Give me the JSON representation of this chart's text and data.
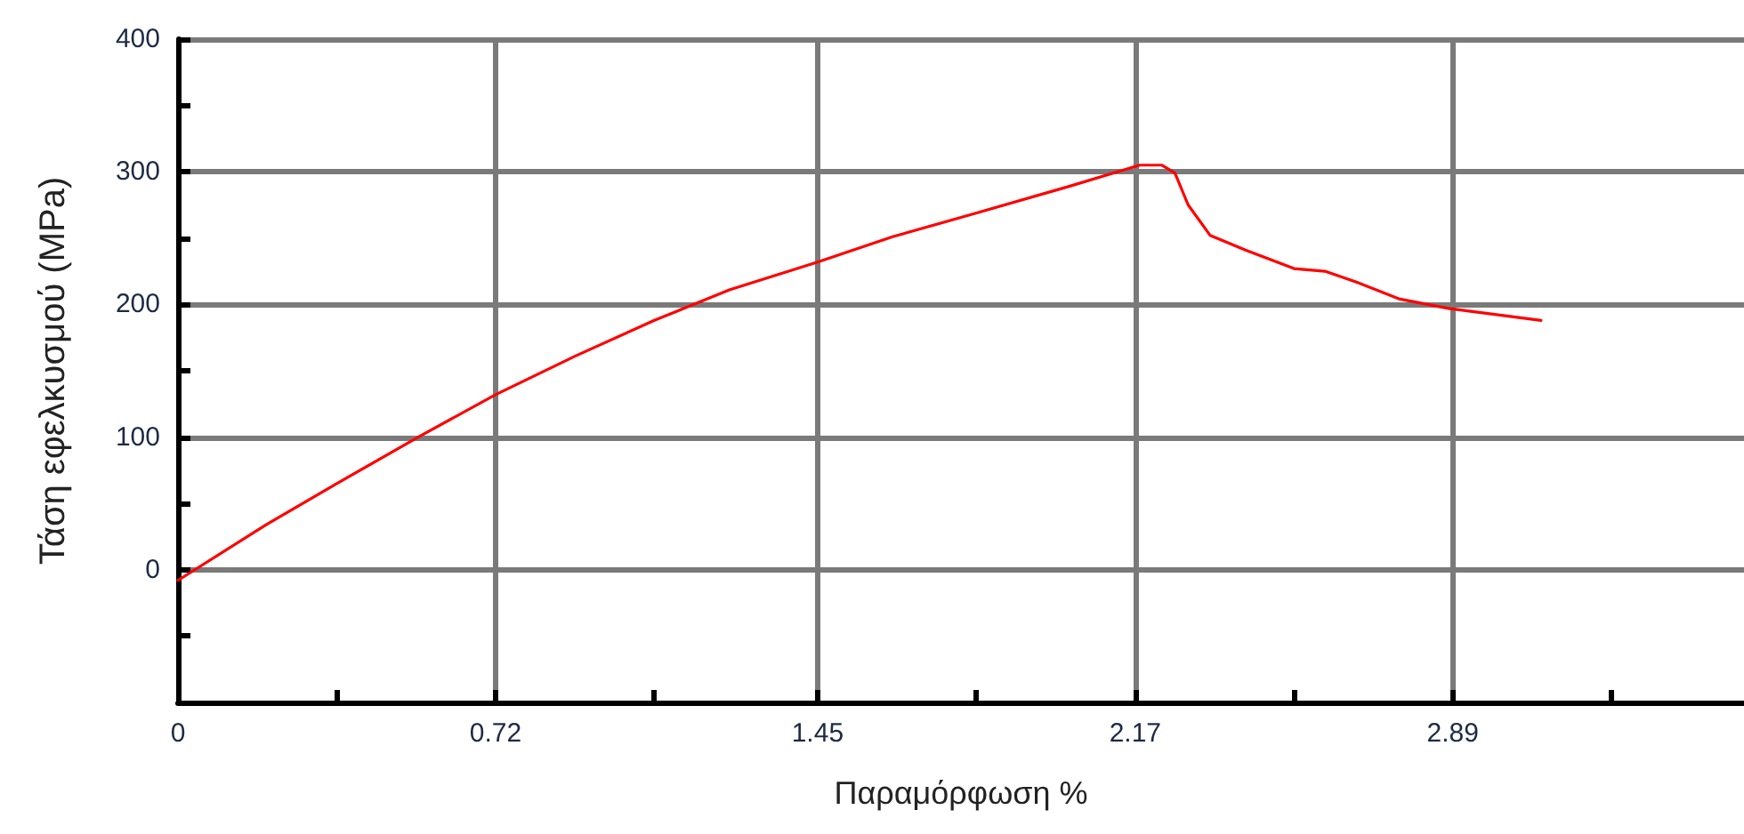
{
  "chart_data": {
    "type": "line",
    "xlabel": "Παραμόρφωση %",
    "ylabel": "Τάση εφελκυσμού (MPa)",
    "series": [
      {
        "color": "#ff0000",
        "x": [
          0,
          0.2,
          0.36,
          0.55,
          0.72,
          0.9,
          1.08,
          1.25,
          1.45,
          1.62,
          1.8,
          2.02,
          2.18,
          2.23,
          2.26,
          2.29,
          2.34,
          2.42,
          2.53,
          2.6,
          2.67,
          2.77,
          2.88,
          3.09
        ],
        "values": [
          -8,
          34,
          65,
          101,
          132,
          161,
          188,
          211,
          232,
          251,
          268,
          289,
          305,
          305,
          299,
          275,
          252,
          241,
          227,
          225,
          217,
          204,
          197,
          188
        ]
      }
    ],
    "xlim": [
      0,
      3.55
    ],
    "xticks": [
      0,
      {
        "value": 0.36,
        "label": null
      },
      0.72,
      {
        "value": 1.08,
        "label": null
      },
      1.45,
      {
        "value": 1.81,
        "label": null
      },
      2.17,
      {
        "value": 2.53,
        "label": null
      },
      2.89,
      {
        "value": 3.25,
        "label": null
      }
    ],
    "ylim": [
      -100,
      400
    ],
    "yticks": [
      {
        "value": -100,
        "label": null
      },
      {
        "value": -50,
        "label": null
      },
      0,
      {
        "value": 50,
        "label": null
      },
      100,
      {
        "value": 150,
        "label": null
      },
      200,
      {
        "value": 250,
        "label": null
      },
      300,
      {
        "value": 350,
        "label": null
      },
      400
    ],
    "grid": true,
    "marker": "none",
    "line_style": "solid"
  }
}
